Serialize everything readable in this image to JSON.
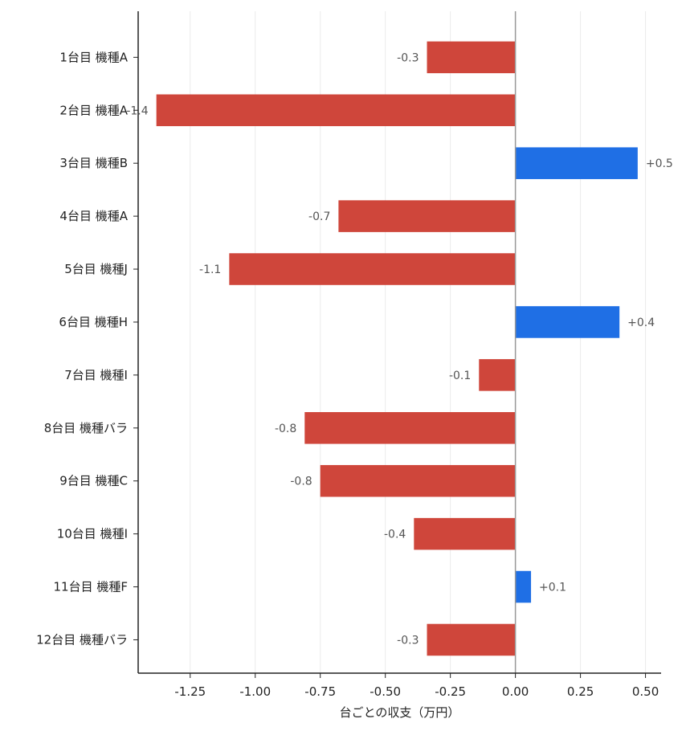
{
  "chart_data": {
    "type": "bar",
    "orientation": "horizontal",
    "title": "",
    "xlabel": "台ごとの収支（万円）",
    "ylabel": "",
    "categories": [
      "1台目 機種A",
      "2台目 機種A",
      "3台目 機種B",
      "4台目 機種A",
      "5台目 機種J",
      "6台目 機種H",
      "7台目 機種I",
      "8台目 機種バラ",
      "9台目 機種C",
      "10台目 機種I",
      "11台目 機種F",
      "12台目 機種バラ"
    ],
    "values": [
      -0.34,
      -1.38,
      0.47,
      -0.68,
      -1.1,
      0.4,
      -0.14,
      -0.81,
      -0.75,
      -0.39,
      0.06,
      -0.34
    ],
    "data_labels": [
      "-0.3",
      "-1.4",
      "+0.5",
      "-0.7",
      "-1.1",
      "+0.4",
      "-0.1",
      "-0.8",
      "-0.8",
      "-0.4",
      "+0.1",
      "-0.3"
    ],
    "xlim": [
      -1.45,
      0.56
    ],
    "xticks": [
      -1.25,
      -1.0,
      -0.75,
      -0.5,
      -0.25,
      0.0,
      0.25,
      0.5
    ],
    "xtick_labels": [
      "-1.25",
      "-1.00",
      "-0.75",
      "-0.50",
      "-0.25",
      "0.00",
      "0.25",
      "0.50"
    ],
    "grid": "vertical",
    "legend": "none",
    "colors": {
      "positive": "#1f6fe5",
      "negative": "#cf463b",
      "zero_line": "#999999",
      "grid": "#ebebeb",
      "axis": "#222222"
    }
  }
}
